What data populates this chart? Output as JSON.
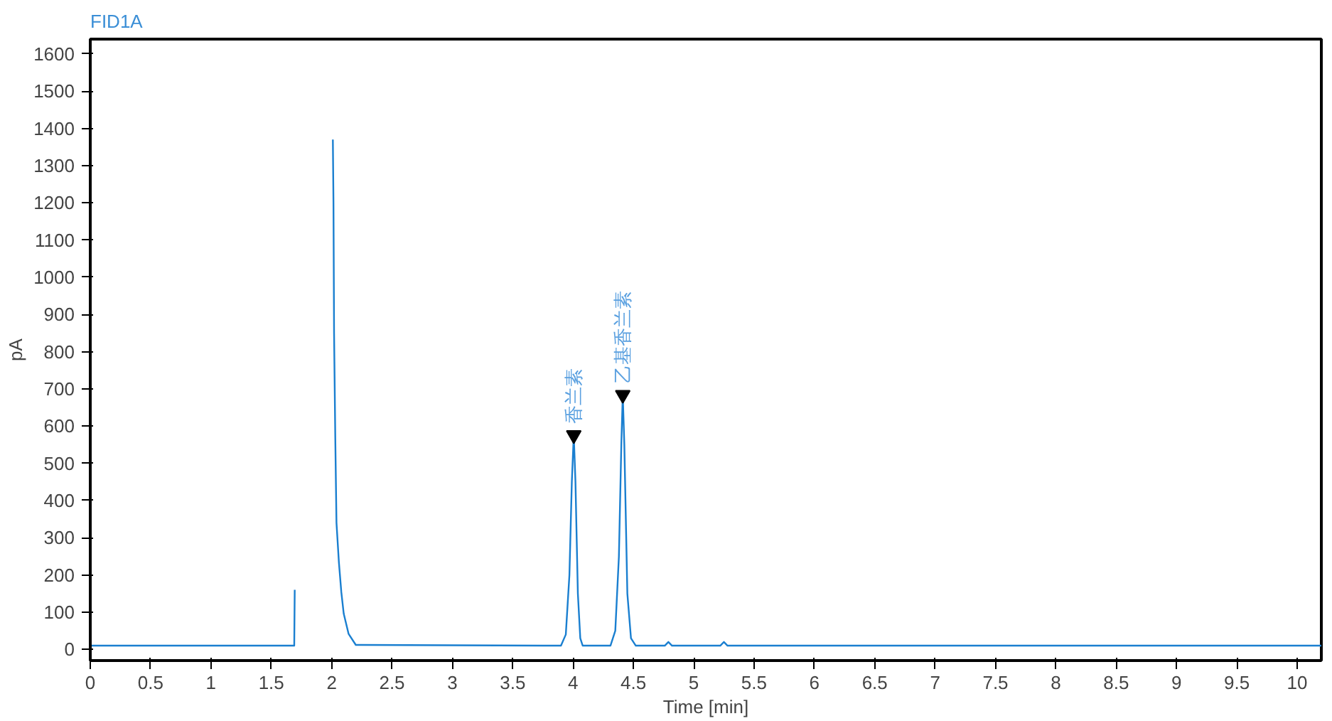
{
  "chart_data": {
    "type": "line",
    "title": "FID1A",
    "xlabel": "Time [min]",
    "ylabel": "pA",
    "x": [
      0,
      1.69,
      1.694,
      1.7,
      1.705,
      1.995,
      2.003,
      2.01,
      2.015,
      2.02,
      2.03,
      2.04,
      2.06,
      2.08,
      2.1,
      2.14,
      2.2,
      3.9,
      3.94,
      3.97,
      3.99,
      4.006,
      4.02,
      4.04,
      4.06,
      4.08,
      4.31,
      4.35,
      4.38,
      4.4,
      4.412,
      4.425,
      4.45,
      4.48,
      4.52,
      4.76,
      4.79,
      4.82,
      5.22,
      5.25,
      5.28,
      10.2
    ],
    "series": [
      {
        "color": "#1a7fd0",
        "values": [
          10,
          10,
          160,
          null,
          null,
          null,
          null,
          1370,
          1200,
          850,
          570,
          340,
          234,
          154,
          96,
          42,
          12,
          10,
          40,
          200,
          450,
          576,
          450,
          150,
          30,
          10,
          10,
          50,
          250,
          550,
          684,
          550,
          150,
          30,
          10,
          10,
          20,
          10,
          10,
          20,
          10,
          10
        ]
      }
    ],
    "annotations": [
      {
        "text": "香兰素",
        "x": 4.006,
        "y": 576
      },
      {
        "text": "乙基香兰素",
        "x": 4.412,
        "y": 684
      }
    ],
    "xlim": [
      0,
      10.2
    ],
    "ylim": [
      -30,
      1640
    ],
    "xticks": [
      0,
      0.5,
      1,
      1.5,
      2,
      2.5,
      3,
      3.5,
      4,
      4.5,
      5,
      5.5,
      6,
      6.5,
      7,
      7.5,
      8,
      8.5,
      9,
      9.5,
      10
    ],
    "yticks": [
      0,
      100,
      200,
      300,
      400,
      500,
      600,
      700,
      800,
      900,
      1000,
      1100,
      1200,
      1300,
      1400,
      1500,
      1600
    ],
    "grid": false,
    "marker": "none",
    "line_style": "solid"
  }
}
